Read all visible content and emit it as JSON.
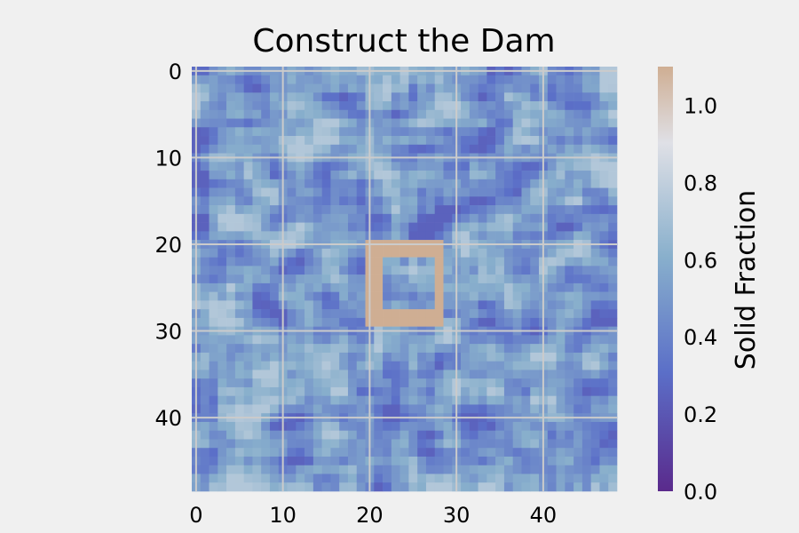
{
  "chart_data": {
    "type": "heatmap",
    "title": "Construct the Dam",
    "xlabel": "",
    "ylabel": "",
    "grid_size": 49,
    "xlim": [
      -0.5,
      48.5
    ],
    "ylim": [
      48.5,
      -0.5
    ],
    "x_ticks": [
      0,
      10,
      20,
      30,
      40
    ],
    "y_ticks": [
      0,
      10,
      20,
      30,
      40
    ],
    "grid": true,
    "colorbar": {
      "label": "Solid Fraction",
      "range": [
        0.0,
        1.1
      ],
      "ticks": [
        "0.0",
        "0.2",
        "0.4",
        "0.6",
        "0.8",
        "1.0"
      ],
      "colors": [
        "#5a2a8c",
        "#5b6fc8",
        "#88afcc",
        "#dfe0e6",
        "#cfae93"
      ]
    },
    "background_field": {
      "description_mean": 0.45,
      "min": 0.25,
      "max": 0.75,
      "seed": 7
    },
    "dam": {
      "value": 1.1,
      "outer_x": [
        20,
        28
      ],
      "outer_y": [
        20,
        29
      ],
      "inner_x": [
        22,
        27
      ],
      "inner_y": [
        22,
        27
      ]
    }
  }
}
